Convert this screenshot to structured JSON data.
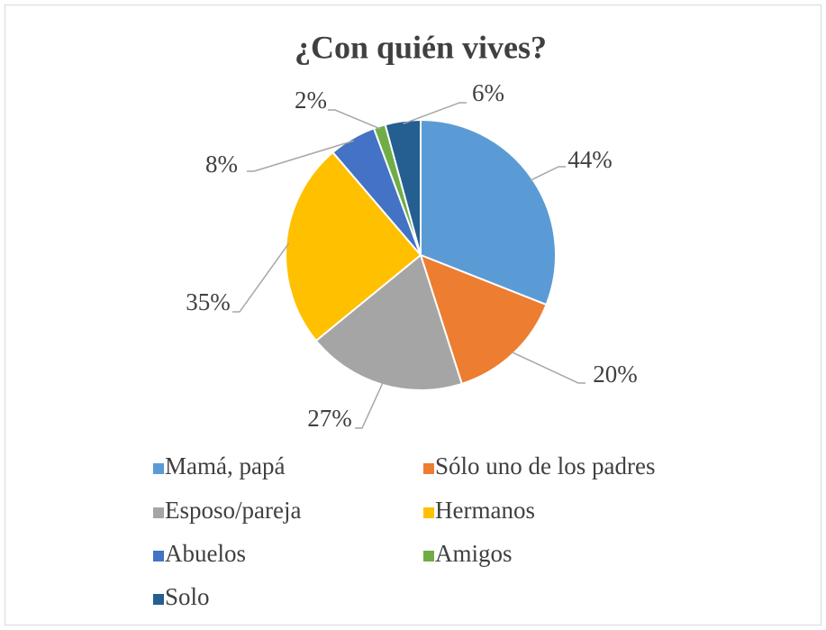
{
  "chart_data": {
    "type": "pie",
    "title": "¿Con quién vives?",
    "categories": [
      "Mamá, papá",
      "Sólo uno de los padres",
      "Esposo/pareja",
      "Hermanos",
      "Abuelos",
      "Amigos",
      "Solo"
    ],
    "values": [
      44,
      20,
      27,
      35,
      8,
      2,
      6
    ],
    "value_labels": [
      "44%",
      "20%",
      "27%",
      "35%",
      "8%",
      "2%",
      "6%"
    ],
    "colors": [
      "#5b9bd5",
      "#ed7d31",
      "#a5a5a5",
      "#ffc000",
      "#4472c4",
      "#70ad47",
      "#255e91"
    ],
    "legend": "bottom"
  }
}
